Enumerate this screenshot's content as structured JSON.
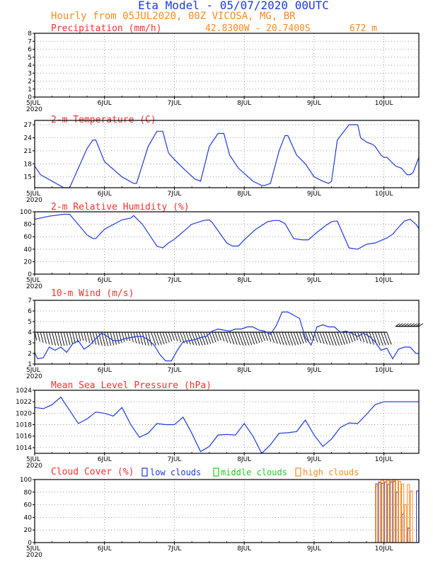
{
  "header": {
    "title": "Eta Model - 05/07/2020 00UTC",
    "subtitle": "Hourly from 05JUL2020, 00Z  VICOSA, MG, BR",
    "coords": "42.8300W - 20.7400S",
    "elevation": "672  m",
    "title_color": "#1e3adc",
    "subtitle_color": "#ff8a1e",
    "panel_title_color": "#ff3030"
  },
  "date_labels": [
    "5JUL",
    "6JUL",
    "7JUL",
    "8JUL",
    "9JUL",
    "10JUL"
  ],
  "year_label": "2020",
  "legend": {
    "low": "low clouds",
    "middle": "middle clouds",
    "high": "high clouds",
    "low_color": "#1e3adc",
    "middle_color": "#22cc22",
    "high_color": "#ff8a1e"
  },
  "chart_data": [
    {
      "id": "precip",
      "type": "line",
      "title": "Precipitation (mm/h)",
      "ylim": [
        0,
        8
      ],
      "yticks": [
        0,
        1,
        2,
        3,
        4,
        5,
        6,
        7,
        8
      ],
      "xlim": [
        0,
        132
      ],
      "x": [
        0,
        132
      ],
      "values": [
        0,
        0
      ]
    },
    {
      "id": "temp",
      "type": "line",
      "title": "2-m Temperature (C)",
      "ylim": [
        12.5,
        28
      ],
      "yticks": [
        15,
        18,
        21,
        24,
        27
      ],
      "xlim": [
        0,
        132
      ],
      "x": [
        0,
        2,
        10,
        12,
        18,
        20,
        21,
        24,
        30,
        34,
        35,
        39,
        42,
        44,
        46,
        48,
        51,
        55,
        57,
        60,
        63,
        65,
        67,
        70,
        75,
        78,
        79,
        81,
        84,
        86,
        87,
        90,
        93,
        96,
        99,
        101,
        102,
        104,
        108,
        111,
        112,
        114,
        116,
        117,
        119,
        120,
        121,
        124,
        126,
        128,
        129,
        130,
        132
      ],
      "values": [
        17.5,
        15.5,
        12.5,
        12.5,
        21.5,
        23.5,
        23.5,
        18.5,
        15,
        13.5,
        13.5,
        22,
        25.5,
        25.5,
        20.5,
        19,
        17,
        14.5,
        14,
        22,
        25,
        25,
        20,
        17,
        14,
        13,
        13,
        13.5,
        21,
        24.5,
        24.5,
        20,
        18,
        15,
        14,
        13.5,
        14,
        23.5,
        27,
        27,
        24,
        23,
        22.5,
        22,
        20,
        19.5,
        19.5,
        17.5,
        17,
        15.5,
        15.5,
        16,
        19.5
      ]
    },
    {
      "id": "rh",
      "type": "line",
      "title": "2-m Relative Humidity (%)",
      "ylim": [
        0,
        100
      ],
      "yticks": [
        0,
        20,
        40,
        60,
        80,
        100
      ],
      "xlim": [
        0,
        132
      ],
      "x": [
        0,
        5,
        10,
        12,
        18,
        20,
        21,
        24,
        30,
        33,
        34,
        37,
        42,
        44,
        46,
        48,
        51,
        54,
        58,
        60,
        61,
        66,
        68,
        70,
        72,
        76,
        80,
        82,
        84,
        86,
        89,
        92,
        94,
        97,
        100,
        102,
        103,
        104,
        108,
        111,
        114,
        117,
        120,
        121,
        123,
        125,
        127,
        129,
        131,
        132
      ],
      "values": [
        88,
        93,
        96,
        96,
        63,
        57,
        57,
        72,
        87,
        90,
        94,
        80,
        45,
        42,
        50,
        56,
        68,
        80,
        86,
        87,
        83,
        50,
        45,
        45,
        55,
        72,
        84,
        86,
        86,
        81,
        57,
        55,
        55,
        67,
        78,
        84,
        85,
        85,
        42,
        40,
        48,
        50,
        56,
        58,
        64,
        75,
        85,
        88,
        80,
        73
      ]
    },
    {
      "id": "wind",
      "type": "line",
      "title": "10-m Wind (m/s)",
      "ylim": [
        1,
        7
      ],
      "yticks": [
        1,
        2,
        3,
        4,
        5,
        6,
        7
      ],
      "xlim": [
        0,
        132
      ],
      "x": [
        0,
        1,
        3,
        5,
        7,
        9,
        11,
        13,
        15,
        17,
        19,
        21,
        23,
        25,
        27,
        29,
        31,
        33,
        35,
        37,
        39,
        41,
        43,
        45,
        47,
        49,
        51,
        53,
        55,
        57,
        59,
        61,
        63,
        65,
        67,
        69,
        71,
        73,
        75,
        77,
        79,
        81,
        83,
        85,
        87,
        89,
        91,
        93,
        95,
        97,
        99,
        101,
        103,
        105,
        107,
        109,
        111,
        113,
        115,
        117,
        119,
        121,
        123,
        125,
        127,
        129,
        131,
        132
      ],
      "values": [
        2.1,
        1.5,
        1.6,
        2.6,
        2.3,
        2.6,
        2.1,
        2.9,
        3.2,
        2.4,
        2.8,
        3.4,
        3.9,
        3.6,
        3.2,
        3.2,
        3.4,
        3.5,
        3.6,
        3.6,
        3.3,
        2.8,
        1.9,
        1.3,
        1.3,
        2.3,
        3.1,
        3.2,
        3.3,
        3.5,
        3.6,
        4.1,
        4.3,
        4.2,
        4.1,
        4.3,
        4.3,
        4.5,
        4.5,
        4.2,
        4.1,
        3.8,
        4.6,
        5.9,
        5.9,
        5.6,
        5.3,
        3.5,
        2.8,
        4.5,
        4.7,
        4.5,
        4.5,
        4.0,
        4.1,
        3.9,
        3.6,
        3.9,
        3.6,
        3.1,
        2.3,
        2.5,
        1.5,
        2.4,
        2.6,
        2.6,
        2.0,
        2.0
      ]
    },
    {
      "id": "mslp",
      "type": "line",
      "title": "Mean Sea Level Pressure (hPa)",
      "ylim": [
        1013,
        1024
      ],
      "yticks": [
        1014,
        1016,
        1018,
        1020,
        1022,
        1024
      ],
      "xlim": [
        0,
        132
      ],
      "x": [
        0,
        3,
        6,
        9,
        12,
        15,
        18,
        21,
        24,
        27,
        30,
        33,
        36,
        39,
        42,
        45,
        48,
        51,
        54,
        57,
        60,
        63,
        66,
        69,
        72,
        75,
        78,
        81,
        84,
        87,
        90,
        93,
        96,
        99,
        102,
        105,
        108,
        111,
        114,
        117,
        120,
        123,
        126,
        129,
        132
      ],
      "values": [
        1021,
        1020.8,
        1021.5,
        1022.8,
        1020.5,
        1018.2,
        1019,
        1020.2,
        1020,
        1019.5,
        1021,
        1018,
        1015.8,
        1016.5,
        1018.2,
        1018,
        1018,
        1019.3,
        1016.5,
        1013.3,
        1014.2,
        1016.2,
        1016.3,
        1016.2,
        1018.2,
        1016,
        1013,
        1014.5,
        1016.5,
        1016.6,
        1016.8,
        1018.8,
        1016.2,
        1014.2,
        1015.5,
        1017.5,
        1018.3,
        1018.2,
        1019.8,
        1021.5,
        1022,
        1022,
        1022,
        1022,
        1022
      ]
    },
    {
      "id": "cloud",
      "type": "bar",
      "title": "Cloud Cover (%)",
      "ylim": [
        0,
        100
      ],
      "yticks": [
        0,
        20,
        40,
        60,
        80,
        100
      ],
      "xlim": [
        0,
        132
      ],
      "x": [
        117,
        118,
        119,
        120,
        121,
        122,
        123,
        124,
        125,
        126,
        127,
        128,
        129,
        130,
        131,
        132
      ],
      "series": [
        {
          "name": "low clouds",
          "values": [
            0,
            93,
            95,
            94,
            96,
            92,
            96,
            97,
            80,
            0,
            45,
            0,
            23,
            0,
            0,
            82
          ]
        },
        {
          "name": "middle clouds",
          "values": [
            0,
            0,
            0,
            0,
            0,
            0,
            0,
            0,
            0,
            0,
            0,
            0,
            0,
            0,
            0,
            0
          ]
        },
        {
          "name": "high clouds",
          "values": [
            90,
            97,
            99,
            100,
            99,
            98,
            99,
            100,
            97,
            93,
            60,
            92,
            82,
            0,
            0,
            0
          ]
        }
      ]
    }
  ]
}
